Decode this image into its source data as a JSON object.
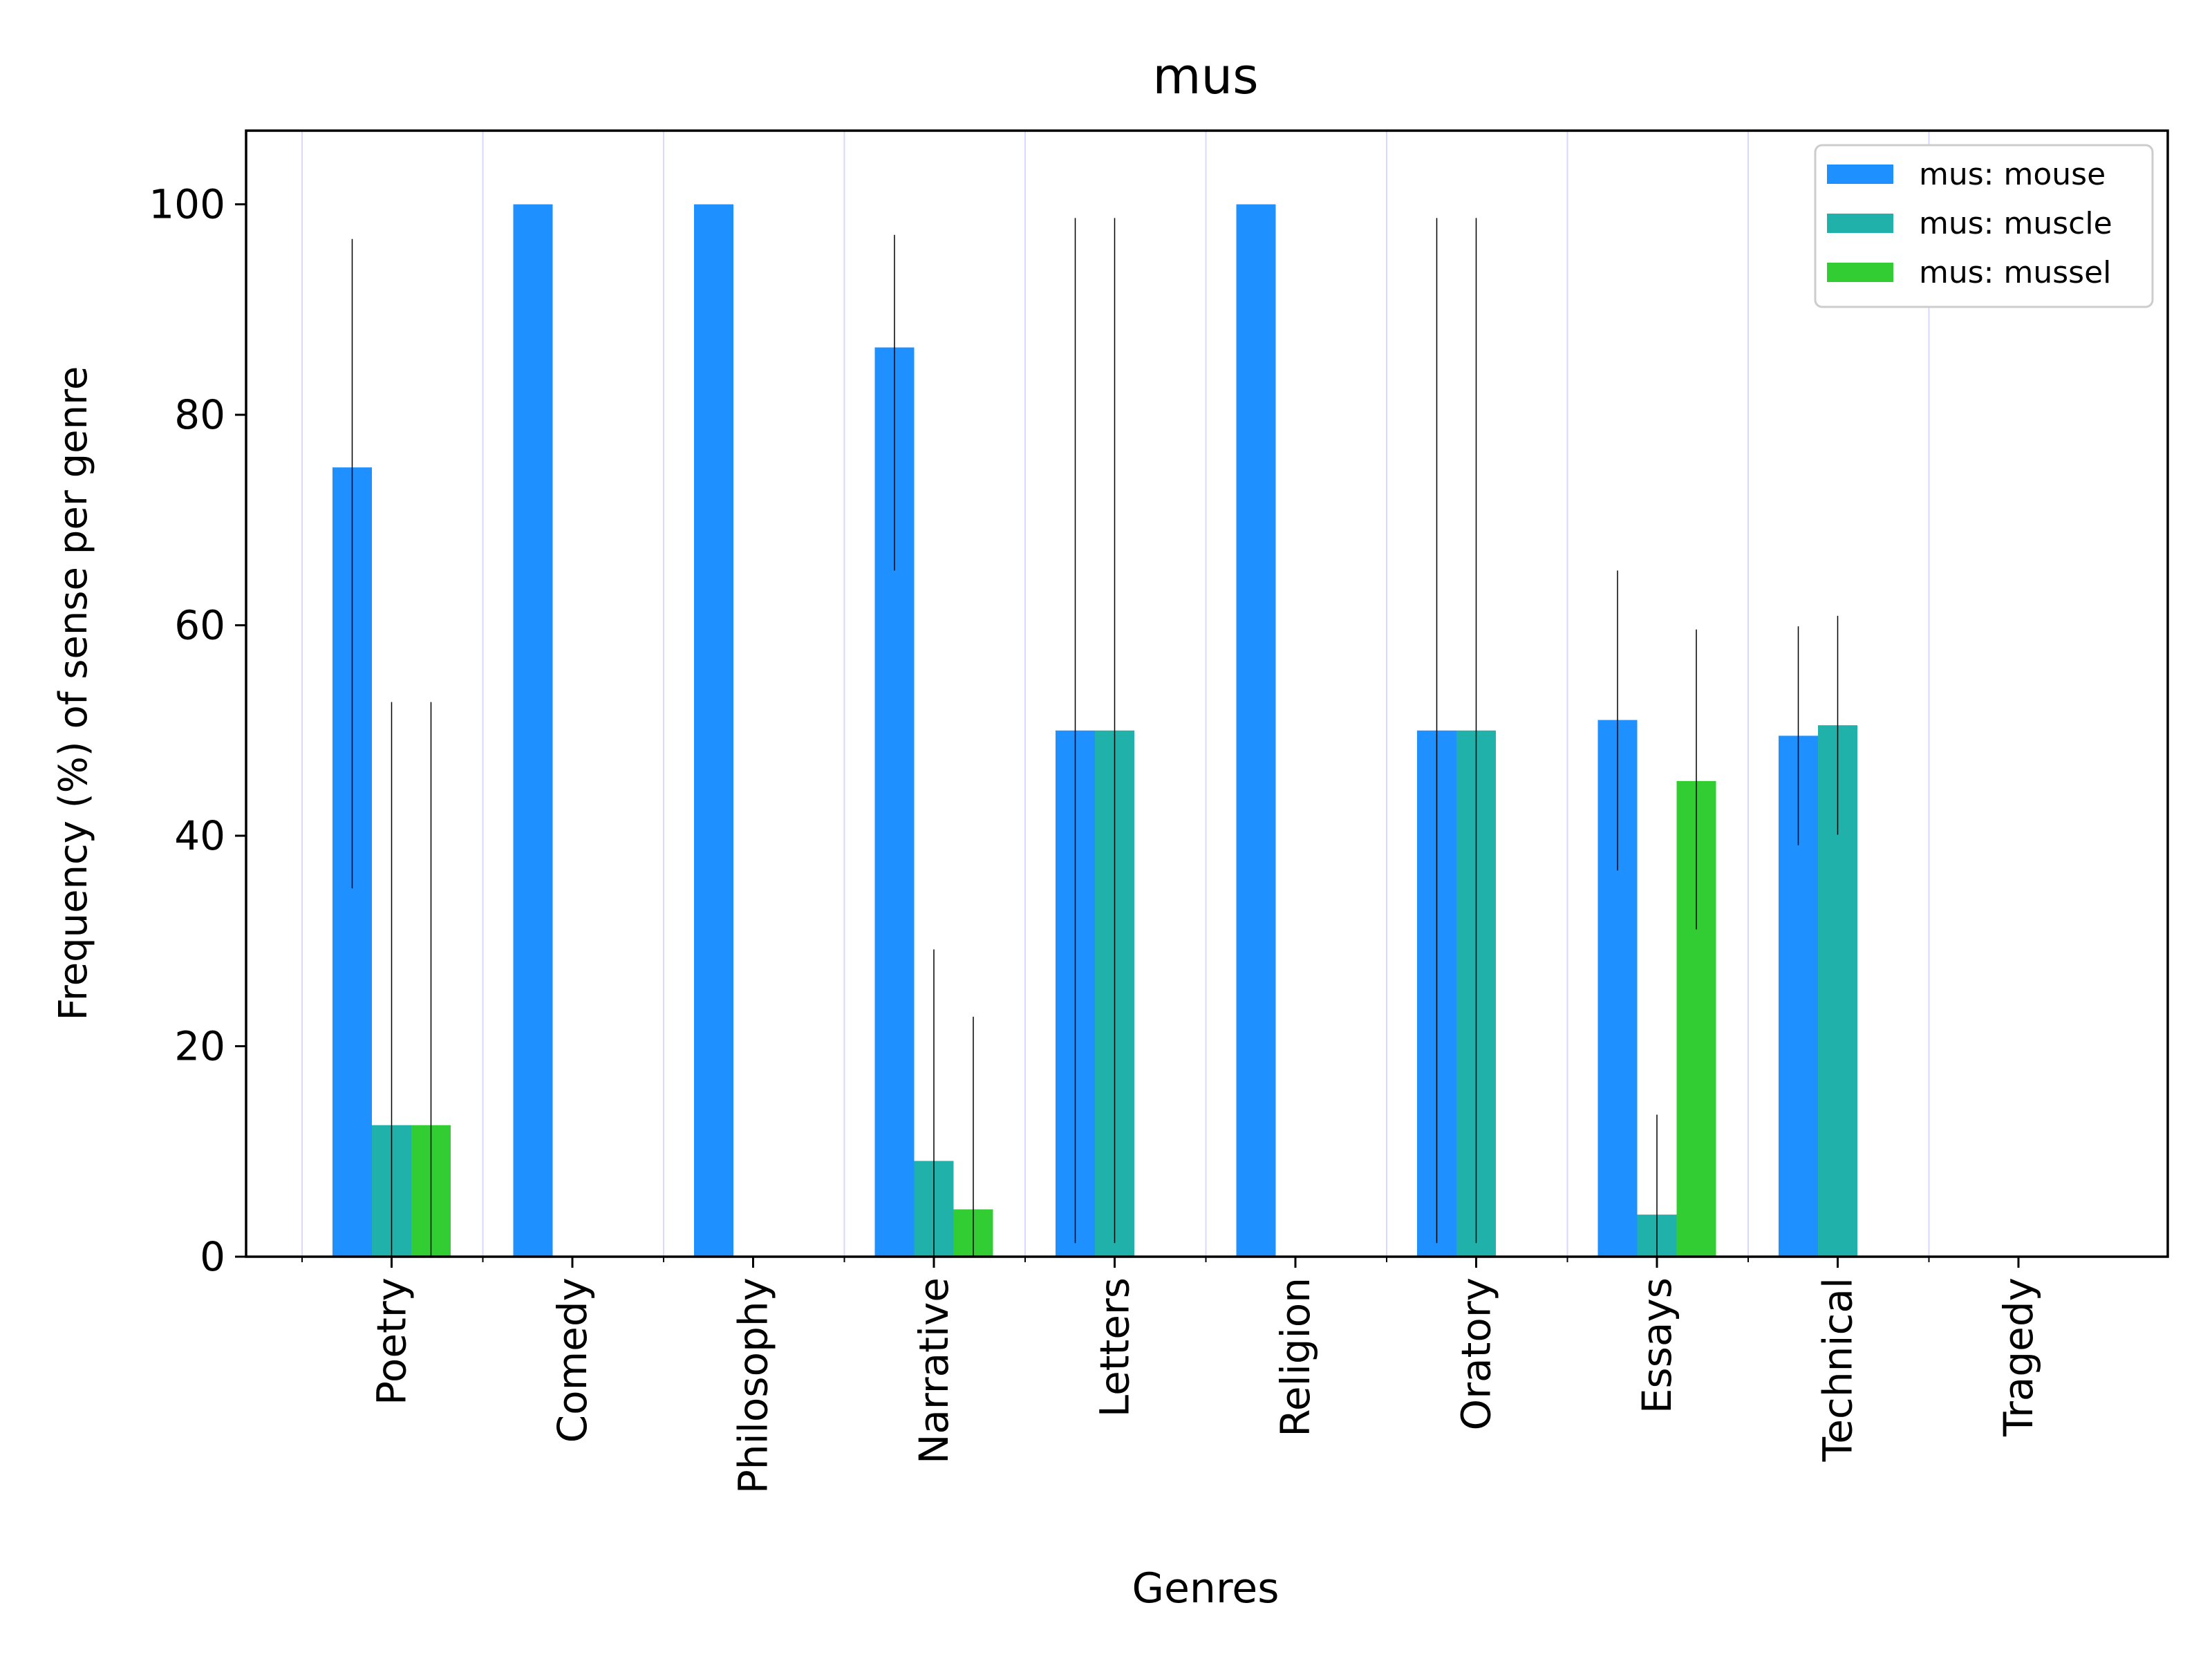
{
  "chart_data": {
    "type": "bar",
    "title": "mus",
    "xlabel": "Genres",
    "ylabel": "Frequency (%) of sense per genre",
    "ylim": [
      0,
      107
    ],
    "yticks": [
      0,
      20,
      40,
      60,
      80,
      100
    ],
    "grid": "vertical",
    "legend_position": "top-right",
    "categories": [
      "Poetry",
      "Comedy",
      "Philosophy",
      "Narrative",
      "Letters",
      "Religion",
      "Oratory",
      "Essays",
      "Technical",
      "Tragedy"
    ],
    "series": [
      {
        "name": "mus: mouse",
        "color": "#1e90ff",
        "values": [
          75,
          100,
          100,
          86.4,
          50,
          100,
          50,
          51,
          49.5,
          0
        ],
        "err_low": [
          35,
          null,
          null,
          65.2,
          1.3,
          null,
          1.3,
          36.7,
          39.1,
          null
        ],
        "err_high": [
          96.7,
          null,
          null,
          97.1,
          98.7,
          null,
          98.7,
          65.2,
          59.9,
          null
        ]
      },
      {
        "name": "mus: muscle",
        "color": "#20b2aa",
        "values": [
          12.5,
          0,
          0,
          9.1,
          50,
          0,
          50,
          4,
          50.5,
          0
        ],
        "err_low": [
          0,
          null,
          null,
          0,
          1.3,
          null,
          1.3,
          0,
          40.1,
          null
        ],
        "err_high": [
          52.7,
          null,
          null,
          29.2,
          98.7,
          null,
          98.7,
          13.5,
          60.9,
          null
        ]
      },
      {
        "name": "mus: mussel",
        "color": "#32cd32",
        "values": [
          12.5,
          0,
          0,
          4.5,
          0,
          0,
          0,
          45.2,
          0,
          0
        ],
        "err_low": [
          0,
          null,
          null,
          0,
          null,
          null,
          null,
          31.1,
          null,
          null
        ],
        "err_high": [
          52.7,
          null,
          null,
          22.8,
          null,
          null,
          null,
          59.6,
          null,
          null
        ]
      }
    ]
  }
}
